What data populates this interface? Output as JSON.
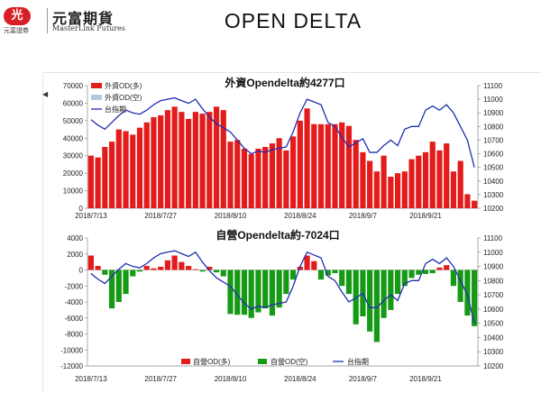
{
  "brand": {
    "badge": "光",
    "small_text": "元富證券",
    "name_cn": "元富期貨",
    "name_en": "MasterLink Futures"
  },
  "page_title": "OPEN DELTA",
  "scroll_marker": "◀",
  "colors": {
    "red": "#e31b1b",
    "pink": "#b9c6e3",
    "green": "#169a16",
    "blue": "#1f2fb0"
  },
  "chart_data": [
    {
      "type": "bar",
      "title": "外資Opendelta約4277口",
      "x_tick_labels": [
        "2018/7/13",
        "2018/7/27",
        "2018/8/10",
        "2018/8/24",
        "2018/9/7",
        "2018/9/21"
      ],
      "x_tick_indices": [
        0,
        10,
        20,
        30,
        39,
        48
      ],
      "left_axis": {
        "ylim": [
          0,
          70000
        ],
        "ticks": [
          0,
          10000,
          20000,
          30000,
          40000,
          50000,
          60000,
          70000
        ]
      },
      "right_axis": {
        "ylim": [
          10200,
          11100
        ],
        "ticks": [
          10200,
          10300,
          10400,
          10500,
          10600,
          10700,
          10800,
          10900,
          11000,
          11100
        ]
      },
      "legend": [
        "外資OD(多)",
        "外資OD(空)",
        "台指期"
      ],
      "legend_position": "top-left",
      "series": [
        {
          "name": "外資OD(多)",
          "type": "bar",
          "axis": "left",
          "values": [
            30000,
            29000,
            35000,
            38000,
            45000,
            44000,
            42000,
            46000,
            49000,
            52000,
            53000,
            56000,
            58000,
            55000,
            51000,
            55000,
            54000,
            55000,
            58000,
            56000,
            38000,
            39000,
            34000,
            31000,
            34000,
            35000,
            37000,
            40000,
            33000,
            41000,
            50000,
            57000,
            48000,
            48000,
            48000,
            48000,
            49000,
            47000,
            39000,
            32000,
            27000,
            21000,
            30000,
            18000,
            20000,
            21000,
            28000,
            30000,
            32000,
            38000,
            33000,
            37000,
            21000,
            27000,
            8000,
            4277
          ]
        },
        {
          "name": "台指期",
          "type": "line",
          "axis": "right",
          "values": [
            10850,
            10810,
            10780,
            10830,
            10880,
            10920,
            10900,
            10890,
            10920,
            10960,
            10990,
            11000,
            11010,
            10990,
            10970,
            11000,
            10930,
            10870,
            10820,
            10790,
            10760,
            10700,
            10640,
            10600,
            10620,
            10610,
            10630,
            10640,
            10650,
            10760,
            10900,
            11000,
            10980,
            10960,
            10830,
            10800,
            10720,
            10650,
            10680,
            10710,
            10610,
            10610,
            10660,
            10700,
            10660,
            10780,
            10800,
            10800,
            10920,
            10950,
            10920,
            10960,
            10900,
            10800,
            10700,
            10500
          ]
        }
      ]
    },
    {
      "type": "bar",
      "title": "自營Opendelta約-7024口",
      "x_tick_labels": [
        "2018/7/13",
        "2018/7/27",
        "2018/8/10",
        "2018/8/24",
        "2018/9/7",
        "2018/9/21"
      ],
      "x_tick_indices": [
        0,
        10,
        20,
        30,
        39,
        48
      ],
      "left_axis": {
        "ylim": [
          -12000,
          4000
        ],
        "ticks": [
          -12000,
          -10000,
          -8000,
          -6000,
          -4000,
          -2000,
          0,
          2000,
          4000
        ]
      },
      "right_axis": {
        "ylim": [
          10200,
          11100
        ],
        "ticks": [
          10200,
          10300,
          10400,
          10500,
          10600,
          10700,
          10800,
          10900,
          11000,
          11100
        ]
      },
      "legend": [
        "自營OD(多)",
        "自營OD(空)",
        "台指期"
      ],
      "legend_position": "bottom",
      "series": [
        {
          "name": "自營OD",
          "type": "bar",
          "axis": "left",
          "values": [
            1800,
            500,
            -600,
            -4800,
            -4000,
            -3000,
            -800,
            -200,
            500,
            200,
            400,
            1200,
            1800,
            1000,
            500,
            100,
            -200,
            400,
            -300,
            -800,
            -5500,
            -5600,
            -5600,
            -6000,
            -5300,
            -4800,
            -5700,
            -4700,
            -3000,
            -1200,
            400,
            1800,
            1100,
            -1200,
            -700,
            -400,
            -2000,
            -3000,
            -6800,
            -5800,
            -7700,
            -9000,
            -6000,
            -5000,
            -3000,
            -2000,
            -1000,
            -600,
            -500,
            -400,
            300,
            600,
            -2000,
            -4000,
            -5700,
            -7024
          ]
        },
        {
          "name": "台指期",
          "type": "line",
          "axis": "right",
          "values": [
            10850,
            10810,
            10780,
            10830,
            10880,
            10920,
            10900,
            10890,
            10920,
            10960,
            10990,
            11000,
            11010,
            10990,
            10970,
            11000,
            10930,
            10870,
            10820,
            10790,
            10760,
            10700,
            10640,
            10600,
            10620,
            10610,
            10630,
            10640,
            10650,
            10760,
            10900,
            11000,
            10980,
            10960,
            10830,
            10800,
            10720,
            10650,
            10680,
            10710,
            10610,
            10610,
            10660,
            10700,
            10660,
            10780,
            10800,
            10800,
            10920,
            10950,
            10920,
            10960,
            10900,
            10800,
            10700,
            10500
          ]
        }
      ]
    }
  ]
}
